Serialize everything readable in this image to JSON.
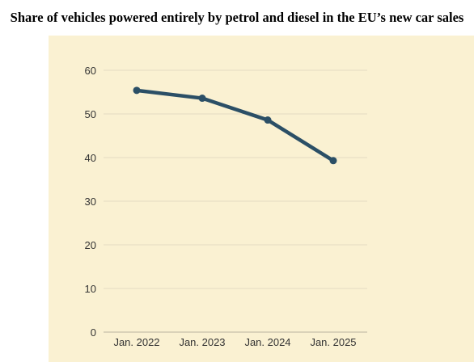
{
  "chart_data": {
    "type": "line",
    "title": "Share of vehicles powered entirely by petrol and diesel in the EU’s new car sales",
    "xlabel": "",
    "ylabel": "",
    "categories": [
      "Jan. 2022",
      "Jan. 2023",
      "Jan. 2024",
      "Jan. 2025"
    ],
    "series": [
      {
        "values": [
          55.4,
          53.6,
          48.6,
          39.3
        ]
      }
    ],
    "ylim": [
      0,
      60
    ],
    "yticks": [
      "0",
      "10",
      "20",
      "30",
      "40",
      "50",
      "60"
    ],
    "grid": true,
    "colors": {
      "line": "#2b4f66",
      "grid": "#e4dcc2",
      "background": "#faf1d2"
    }
  }
}
